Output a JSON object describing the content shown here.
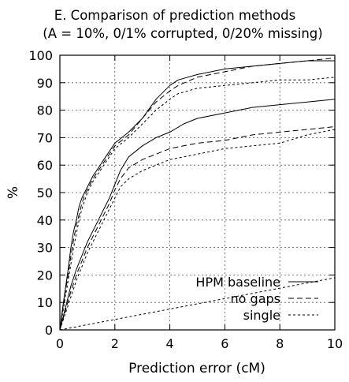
{
  "chart_data": {
    "type": "line",
    "title": "E. Comparison of prediction methods",
    "subtitle": "(A = 10%, 0/1% corrupted, 0/20% missing)",
    "xlabel": "Prediction error (cM)",
    "ylabel": "%",
    "xlim": [
      0,
      10
    ],
    "ylim": [
      0,
      100
    ],
    "x_ticks": [
      "0",
      "2",
      "4",
      "6",
      "8",
      "10"
    ],
    "y_ticks": [
      "0",
      "10",
      "20",
      "30",
      "40",
      "50",
      "60",
      "70",
      "80",
      "90",
      "100"
    ],
    "grid": true,
    "legend_position": "bottom-right",
    "legend": [
      "HPM baseline",
      "no gaps",
      "single"
    ],
    "series": [
      {
        "name": "HPM baseline",
        "group": "0% corrupted, 0% missing",
        "style": "solid",
        "x": [
          0,
          0.1,
          0.2,
          0.3,
          0.4,
          0.5,
          0.6,
          0.7,
          0.8,
          0.9,
          1.0,
          1.2,
          1.4,
          1.6,
          1.8,
          2.0,
          2.5,
          3.0,
          3.5,
          4.0,
          4.3,
          5.0,
          6.0,
          7.0,
          8.0,
          9.0,
          10.0
        ],
        "y": [
          0,
          8,
          15,
          22,
          30,
          36,
          40,
          45,
          48,
          50,
          52,
          56,
          59,
          62,
          65,
          68,
          72,
          77,
          84,
          89,
          91,
          93,
          95,
          96,
          97,
          98,
          98
        ]
      },
      {
        "name": "no gaps",
        "group": "0% corrupted, 0% missing",
        "style": "dashed",
        "x": [
          0,
          0.1,
          0.2,
          0.3,
          0.4,
          0.5,
          0.6,
          0.7,
          0.8,
          0.9,
          1.0,
          1.2,
          1.4,
          1.6,
          1.8,
          2.0,
          2.5,
          3.0,
          3.5,
          4.0,
          4.3,
          5.0,
          6.0,
          7.0,
          8.0,
          9.0,
          10.0
        ],
        "y": [
          0,
          7,
          14,
          20,
          27,
          33,
          38,
          42,
          46,
          49,
          51,
          55,
          58,
          61,
          64,
          67,
          71,
          77,
          83,
          87,
          89,
          92,
          94,
          96,
          97,
          98,
          99
        ]
      },
      {
        "name": "single",
        "group": "0% corrupted, 0% missing",
        "style": "dotted",
        "x": [
          0,
          0.1,
          0.2,
          0.3,
          0.4,
          0.5,
          0.6,
          0.7,
          0.8,
          0.9,
          1.0,
          1.2,
          1.4,
          1.6,
          1.8,
          2.0,
          2.5,
          3.0,
          3.5,
          4.0,
          4.3,
          5.0,
          6.0,
          7.0,
          8.0,
          9.0,
          10.0
        ],
        "y": [
          0,
          6,
          12,
          18,
          24,
          30,
          35,
          40,
          44,
          47,
          50,
          54,
          57,
          60,
          63,
          66,
          70,
          75,
          80,
          84,
          86,
          88,
          89,
          90,
          91,
          91,
          92
        ]
      },
      {
        "name": "HPM baseline",
        "group": "1% corrupted, 20% missing",
        "style": "solid",
        "x": [
          0,
          0.2,
          0.4,
          0.6,
          0.8,
          1.0,
          1.2,
          1.4,
          1.6,
          1.8,
          2.0,
          2.2,
          2.5,
          3.0,
          3.5,
          4.0,
          4.5,
          5.0,
          6.0,
          7.0,
          8.0,
          9.0,
          10.0
        ],
        "y": [
          0,
          8,
          16,
          22,
          27,
          32,
          36,
          40,
          44,
          48,
          53,
          58,
          63,
          67,
          70,
          72,
          75,
          77,
          79,
          81,
          82,
          83,
          84
        ]
      },
      {
        "name": "no gaps",
        "group": "1% corrupted, 20% missing",
        "style": "dashed",
        "x": [
          0,
          0.2,
          0.4,
          0.6,
          0.8,
          1.0,
          1.2,
          1.4,
          1.6,
          1.8,
          2.0,
          2.2,
          2.5,
          3.0,
          3.5,
          4.0,
          4.5,
          5.0,
          6.0,
          7.0,
          8.0,
          9.0,
          10.0
        ],
        "y": [
          0,
          7,
          14,
          20,
          25,
          30,
          34,
          38,
          42,
          46,
          51,
          55,
          59,
          62,
          64,
          66,
          67,
          68,
          69,
          71,
          72,
          73,
          74
        ]
      },
      {
        "name": "single",
        "group": "1% corrupted, 20% missing",
        "style": "dotted",
        "x": [
          0,
          0.2,
          0.4,
          0.6,
          0.8,
          1.0,
          1.2,
          1.4,
          1.6,
          1.8,
          2.0,
          2.2,
          2.5,
          3.0,
          3.5,
          4.0,
          4.5,
          5.0,
          6.0,
          7.0,
          8.0,
          9.0,
          10.0
        ],
        "y": [
          0,
          6,
          12,
          18,
          23,
          28,
          32,
          36,
          40,
          44,
          48,
          52,
          55,
          58,
          60,
          62,
          63,
          64,
          66,
          67,
          68,
          71,
          73
        ]
      },
      {
        "name": "",
        "group": "reference",
        "style": "dotted",
        "x": [
          0,
          10
        ],
        "y": [
          0,
          19
        ]
      }
    ]
  }
}
